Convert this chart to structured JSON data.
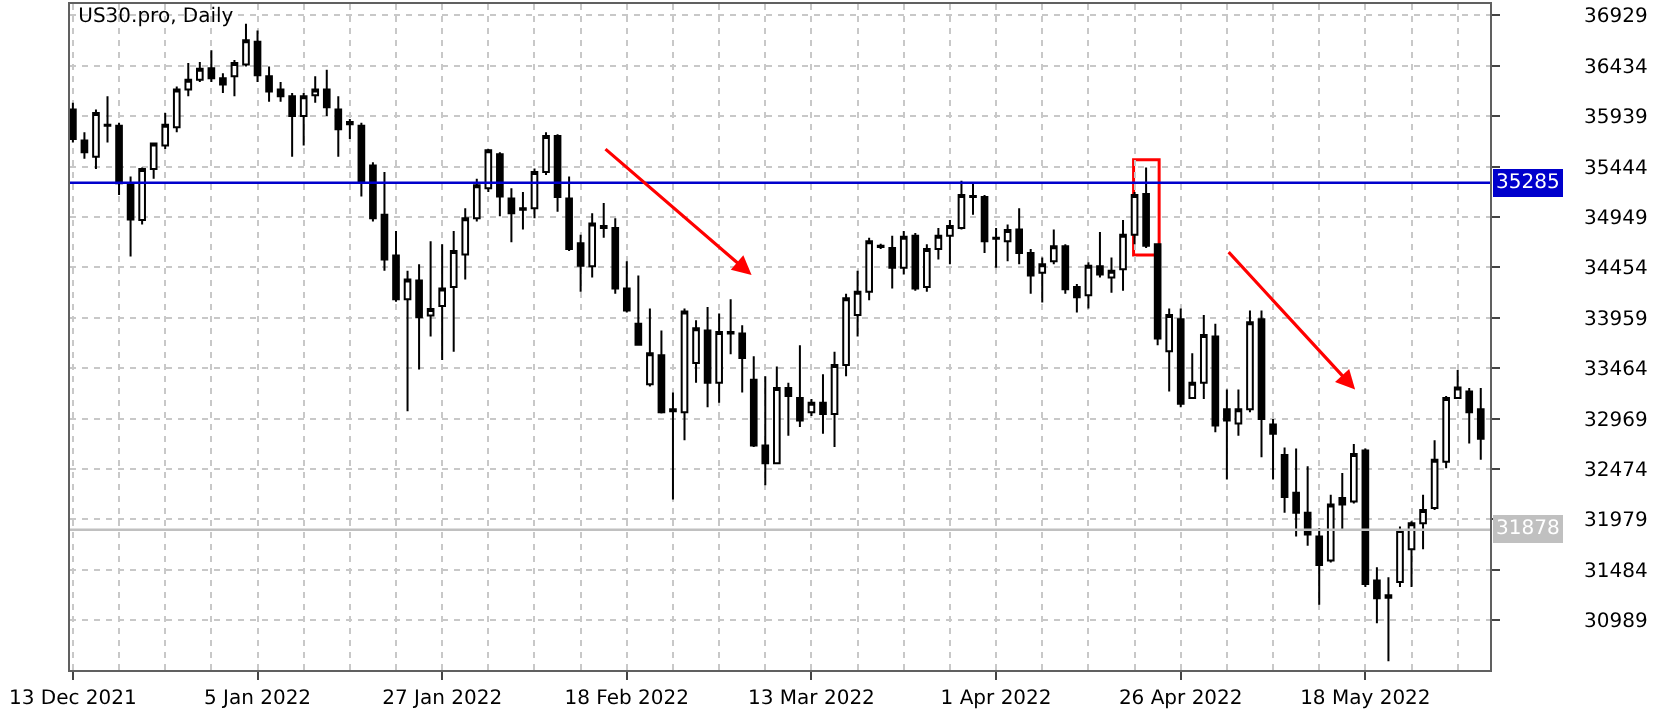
{
  "chart_data": {
    "type": "candlestick",
    "title": "US30.pro, Daily",
    "color": "#000000",
    "categories": [
      "13 Dec 2021",
      null,
      null,
      null,
      null,
      null,
      null,
      null,
      null,
      null,
      null,
      null,
      null,
      null,
      null,
      null,
      "5 Jan 2022",
      null,
      null,
      null,
      null,
      null,
      null,
      null,
      null,
      null,
      null,
      null,
      null,
      null,
      null,
      null,
      "27 Jan 2022",
      null,
      null,
      null,
      null,
      null,
      null,
      null,
      null,
      null,
      null,
      null,
      null,
      null,
      null,
      null,
      "18 Feb 2022",
      null,
      null,
      null,
      null,
      null,
      null,
      null,
      null,
      null,
      null,
      null,
      null,
      null,
      null,
      null,
      "13 Mar 2022",
      null,
      null,
      null,
      null,
      null,
      null,
      null,
      null,
      null,
      null,
      null,
      null,
      null,
      null,
      null,
      "1 Apr 2022",
      null,
      null,
      null,
      null,
      null,
      null,
      null,
      null,
      null,
      null,
      null,
      null,
      null,
      null,
      null,
      "26 Apr 2022",
      null,
      null,
      null,
      null,
      null,
      null,
      null,
      null,
      null,
      null,
      null,
      null,
      null,
      null,
      null,
      "18 May 2022",
      null,
      null,
      null,
      null,
      null,
      null,
      null,
      null,
      null,
      null
    ],
    "ohlc": [
      [
        36005,
        36070,
        35680,
        35715
      ],
      [
        35700,
        35780,
        35520,
        35585
      ],
      [
        35540,
        36005,
        35420,
        35970
      ],
      [
        35845,
        36135,
        35680,
        35855
      ],
      [
        35845,
        35875,
        35165,
        35280
      ],
      [
        35280,
        35345,
        34560,
        34925
      ],
      [
        34920,
        35435,
        34875,
        35420
      ],
      [
        35420,
        35680,
        35325,
        35670
      ],
      [
        35650,
        35970,
        35615,
        35855
      ],
      [
        35830,
        36230,
        35780,
        36200
      ],
      [
        36200,
        36460,
        36135,
        36295
      ],
      [
        36295,
        36470,
        36275,
        36405
      ],
      [
        36410,
        36585,
        36275,
        36310
      ],
      [
        36310,
        36360,
        36165,
        36250
      ],
      [
        36330,
        36490,
        36135,
        36460
      ],
      [
        36445,
        36845,
        36425,
        36685
      ],
      [
        36670,
        36780,
        36275,
        36340
      ],
      [
        36330,
        36425,
        36080,
        36180
      ],
      [
        36200,
        36275,
        36080,
        36135
      ],
      [
        36135,
        36165,
        35540,
        35940
      ],
      [
        35940,
        36165,
        35650,
        36135
      ],
      [
        36145,
        36330,
        36070,
        36200
      ],
      [
        36200,
        36395,
        35940,
        36025
      ],
      [
        36005,
        36135,
        35540,
        35810
      ],
      [
        35880,
        35910,
        35715,
        35860
      ],
      [
        35845,
        35875,
        35150,
        35295
      ],
      [
        35455,
        35485,
        34905,
        34935
      ],
      [
        34970,
        35390,
        34420,
        34530
      ],
      [
        34570,
        34810,
        34115,
        34140
      ],
      [
        34140,
        34420,
        33040,
        34335
      ],
      [
        34325,
        34485,
        33450,
        33965
      ],
      [
        33980,
        34710,
        33775,
        34045
      ],
      [
        34075,
        34680,
        33545,
        34245
      ],
      [
        34260,
        34810,
        33625,
        34615
      ],
      [
        34580,
        35035,
        34335,
        34935
      ],
      [
        34935,
        35325,
        34905,
        35260
      ],
      [
        35230,
        35615,
        35195,
        35605
      ],
      [
        35565,
        35585,
        34955,
        35150
      ],
      [
        35130,
        35230,
        34700,
        34985
      ],
      [
        35035,
        35195,
        34825,
        35020
      ],
      [
        35035,
        35425,
        34935,
        35390
      ],
      [
        35390,
        35780,
        35360,
        35745
      ],
      [
        35745,
        35760,
        35000,
        35145
      ],
      [
        35130,
        35345,
        34615,
        34635
      ],
      [
        34690,
        34775,
        34215,
        34470
      ],
      [
        34465,
        34985,
        34355,
        34885
      ],
      [
        34840,
        35085,
        34745,
        34860
      ],
      [
        34840,
        34935,
        34195,
        34245
      ],
      [
        34245,
        34515,
        34010,
        34030
      ],
      [
        33900,
        34375,
        33690,
        33695
      ],
      [
        33305,
        34050,
        33285,
        33610
      ],
      [
        33590,
        33835,
        33020,
        33030
      ],
      [
        33060,
        33225,
        32175,
        33040
      ],
      [
        33030,
        34050,
        32755,
        34020
      ],
      [
        33515,
        33935,
        33320,
        33855
      ],
      [
        33835,
        34065,
        33080,
        33320
      ],
      [
        33320,
        34000,
        33125,
        33820
      ],
      [
        33805,
        34140,
        33600,
        33820
      ],
      [
        33805,
        33885,
        33225,
        33565
      ],
      [
        33350,
        33580,
        32690,
        32705
      ],
      [
        32705,
        33385,
        32315,
        32530
      ],
      [
        32530,
        33480,
        32520,
        33270
      ],
      [
        33270,
        33320,
        32800,
        33190
      ],
      [
        33170,
        33690,
        32885,
        32950
      ],
      [
        33030,
        33160,
        32995,
        33125
      ],
      [
        33125,
        33405,
        32820,
        33015
      ],
      [
        33015,
        33625,
        32690,
        33495
      ],
      [
        33495,
        34195,
        33385,
        34150
      ],
      [
        33985,
        34420,
        33775,
        34215
      ],
      [
        34215,
        34745,
        34130,
        34710
      ],
      [
        34665,
        34685,
        34635,
        34655
      ],
      [
        34645,
        34765,
        34245,
        34450
      ],
      [
        34450,
        34810,
        34385,
        34755
      ],
      [
        34765,
        34790,
        34225,
        34245
      ],
      [
        34260,
        34680,
        34215,
        34635
      ],
      [
        34635,
        34840,
        34530,
        34765
      ],
      [
        34765,
        34920,
        34485,
        34860
      ],
      [
        34840,
        35305,
        34825,
        35165
      ],
      [
        35155,
        35280,
        34970,
        35145
      ],
      [
        35145,
        35165,
        34595,
        34710
      ],
      [
        34745,
        34840,
        34450,
        34735
      ],
      [
        34710,
        34875,
        34515,
        34820
      ],
      [
        34825,
        35035,
        34485,
        34595
      ],
      [
        34595,
        34635,
        34195,
        34375
      ],
      [
        34400,
        34550,
        34110,
        34485
      ],
      [
        34515,
        34825,
        34485,
        34660
      ],
      [
        34660,
        34680,
        34195,
        34240
      ],
      [
        34260,
        34290,
        34010,
        34160
      ],
      [
        34180,
        34505,
        34050,
        34470
      ],
      [
        34465,
        34800,
        34355,
        34385
      ],
      [
        34355,
        34550,
        34205,
        34420
      ],
      [
        34435,
        34920,
        34225,
        34775
      ],
      [
        34775,
        35195,
        34680,
        35165
      ],
      [
        35175,
        35435,
        34645,
        34665
      ],
      [
        34680,
        34680,
        33690,
        33755
      ],
      [
        33630,
        34050,
        33235,
        33985
      ],
      [
        33945,
        34050,
        33080,
        33115
      ],
      [
        33170,
        33610,
        33160,
        33320
      ],
      [
        33320,
        33985,
        33160,
        33790
      ],
      [
        33775,
        33900,
        32835,
        32900
      ],
      [
        33060,
        33255,
        32370,
        32950
      ],
      [
        32920,
        33255,
        32800,
        33060
      ],
      [
        33060,
        34030,
        33030,
        33915
      ],
      [
        33945,
        34030,
        32590,
        32965
      ],
      [
        32910,
        32965,
        32370,
        32820
      ],
      [
        32610,
        32685,
        32045,
        32200
      ],
      [
        32240,
        32675,
        31810,
        32045
      ],
      [
        32045,
        32500,
        31720,
        31830
      ],
      [
        31810,
        31895,
        31140,
        31530
      ],
      [
        31575,
        32220,
        31555,
        32125
      ],
      [
        32190,
        32435,
        31865,
        32125
      ],
      [
        32155,
        32720,
        32135,
        32620
      ],
      [
        32655,
        32675,
        31315,
        31345
      ],
      [
        31380,
        31510,
        30960,
        31205
      ],
      [
        31235,
        31410,
        30585,
        31210
      ],
      [
        31365,
        31910,
        31315,
        31875
      ],
      [
        31685,
        31960,
        31315,
        31940
      ],
      [
        31940,
        32220,
        31685,
        32070
      ],
      [
        32090,
        32755,
        32070,
        32565
      ],
      [
        32545,
        33190,
        32480,
        33170
      ],
      [
        33170,
        33445,
        33160,
        33275
      ],
      [
        33235,
        33270,
        32725,
        33030
      ],
      [
        33060,
        33270,
        32565,
        32770
      ]
    ],
    "ylim": [
      30500,
      37040
    ],
    "yticks": [
      30989,
      31484,
      31979,
      32474,
      32969,
      33464,
      33959,
      34454,
      34949,
      35444,
      35939,
      36434,
      36929
    ],
    "grid": true,
    "ref_lines": [
      {
        "axis": "y",
        "value": 35285,
        "label": "35285",
        "color": "#0000cc"
      },
      {
        "axis": "y",
        "value": 31878,
        "label": "31878",
        "color": "#c0c0c0"
      }
    ]
  }
}
